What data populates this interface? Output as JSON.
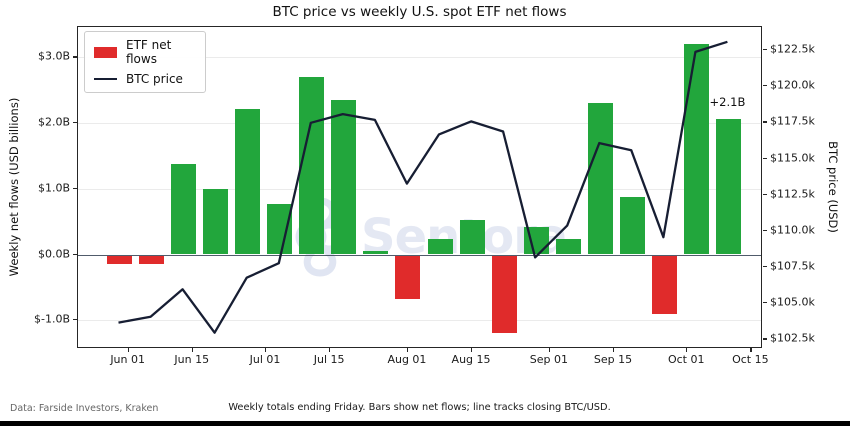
{
  "title": "BTC price vs weekly U.S. spot ETF net flows",
  "watermark": "Sentora",
  "source_note": "Data: Farside Investors, Kraken",
  "footnote": "Weekly totals ending Friday. Bars show net flows; line tracks closing BTC/USD.",
  "annotation": {
    "text": "+2.1B",
    "week_index": 19
  },
  "legend": {
    "items": [
      {
        "label": "ETF net flows",
        "type": "patch"
      },
      {
        "label": "BTC price",
        "type": "line"
      }
    ]
  },
  "left_axis": {
    "label": "Weekly net flows (USD billions)",
    "ticks": [
      {
        "label": "$3.0B",
        "value": 3
      },
      {
        "label": "$2.0B",
        "value": 2
      },
      {
        "label": "$1.0B",
        "value": 1
      },
      {
        "label": "$0.0B",
        "value": 0
      },
      {
        "label": "$-1.0B",
        "value": -1
      }
    ]
  },
  "right_axis": {
    "label": "BTC price (USD)",
    "ticks": [
      {
        "label": "$122.5k",
        "value": 122.5
      },
      {
        "label": "$120.0k",
        "value": 120.0
      },
      {
        "label": "$117.5k",
        "value": 117.5
      },
      {
        "label": "$115.0k",
        "value": 115.0
      },
      {
        "label": "$112.5k",
        "value": 112.5
      },
      {
        "label": "$110.0k",
        "value": 110.0
      },
      {
        "label": "$107.5k",
        "value": 107.5
      },
      {
        "label": "$105.0k",
        "value": 105.0
      },
      {
        "label": "$102.5k",
        "value": 102.5
      }
    ]
  },
  "x_axis": {
    "ticks": [
      {
        "label": "Jun 01",
        "day_offset": 2
      },
      {
        "label": "Jun 15",
        "day_offset": 16
      },
      {
        "label": "Jul 01",
        "day_offset": 32
      },
      {
        "label": "Jul 15",
        "day_offset": 46
      },
      {
        "label": "Aug 01",
        "day_offset": 63
      },
      {
        "label": "Aug 15",
        "day_offset": 77
      },
      {
        "label": "Sep 01",
        "day_offset": 94
      },
      {
        "label": "Sep 15",
        "day_offset": 108
      },
      {
        "label": "Oct 01",
        "day_offset": 124
      },
      {
        "label": "Oct 15",
        "day_offset": 138
      }
    ]
  },
  "colors": {
    "positive_bar": "#22a63c",
    "negative_bar": "#e02b2b",
    "price_line": "#171e33",
    "zero_line": "#505b6b",
    "grid": "#ebebeb",
    "watermark": "#e4e8f3"
  },
  "chart_data": {
    "type": "bar+line",
    "title": "BTC price vs weekly U.S. spot ETF net flows",
    "x": [
      "May 30",
      "Jun 06",
      "Jun 13",
      "Jun 20",
      "Jun 27",
      "Jul 04",
      "Jul 11",
      "Jul 18",
      "Jul 25",
      "Aug 01",
      "Aug 08",
      "Aug 15",
      "Aug 22",
      "Aug 29",
      "Sep 05",
      "Sep 12",
      "Sep 19",
      "Sep 26",
      "Oct 03",
      "Oct 10"
    ],
    "x_note": "weekly totals ending Friday",
    "series": [
      {
        "name": "ETF net flows",
        "type": "bar",
        "unit": "USD billions",
        "axis": "left",
        "values": [
          -0.15,
          -0.15,
          1.38,
          1.0,
          2.21,
          0.77,
          2.7,
          2.35,
          0.05,
          -0.67,
          0.23,
          0.52,
          -1.2,
          0.42,
          0.23,
          2.3,
          0.87,
          -0.91,
          3.21,
          2.07
        ]
      },
      {
        "name": "BTC price",
        "type": "line",
        "unit": "USD thousands",
        "axis": "right",
        "values": [
          103.6,
          104.0,
          105.9,
          102.9,
          106.7,
          107.7,
          117.4,
          118.0,
          117.6,
          113.2,
          116.6,
          117.5,
          116.8,
          108.1,
          110.3,
          116.0,
          115.5,
          109.5,
          122.3,
          123.0
        ]
      }
    ],
    "ylabel_left": "Weekly net flows (USD billions)",
    "ylabel_right": "BTC price (USD)",
    "ylim_left": [
      -1.45,
      3.47
    ],
    "ylim_right": [
      101.8,
      124.1
    ],
    "grid": "horizontal, left-axis ticks only",
    "zero_line": true,
    "legend_position": "upper left",
    "annotation": {
      "text": "+2.1B",
      "x": "Oct 10"
    }
  }
}
